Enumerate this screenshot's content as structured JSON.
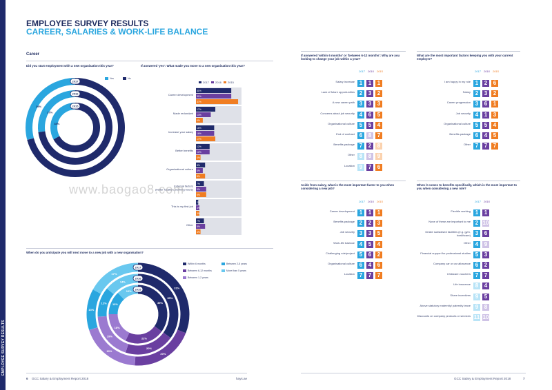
{
  "spine_label": "EMPLOYEE SURVEY RESULTS",
  "title_line1": "EMPLOYEE SURVEY RESULTS",
  "title_line2": "CAREER, SALARIES & WORK-LIFE BALANCE",
  "section": "Career",
  "watermark": "www.baogao8.com",
  "footer_left_page": "6",
  "footer_left_report": "GCC Salary & Employment Report 2018",
  "footer_left_site": "hays.ae",
  "footer_right_report": "GCC Salary & Employment Report 2018",
  "footer_right_page": "7",
  "colors": {
    "y2017": "#1f2a6b",
    "y2016": "#6a3fa0",
    "y2015": "#f07d22",
    "light2015": "#fbd2ae",
    "light2016": "#cfc3e6",
    "light2017": "#c9ccdc",
    "cyan": "#2aa6df",
    "navy": "#1f2a6b",
    "purple": "#6a3fa0",
    "lav": "#9b7ad0",
    "lightblue": "#69c8ef"
  },
  "chart_data": [
    {
      "type": "donut",
      "title": "Did you start employment with a new organisation this year?",
      "legend": [
        "Yes",
        "No"
      ],
      "rings": [
        {
          "year": "2017",
          "yes": 29,
          "no": 71
        },
        {
          "year": "2016",
          "yes": 27,
          "no": 73
        },
        {
          "year": "2015",
          "yes": 33,
          "no": 67
        }
      ]
    },
    {
      "type": "bar",
      "title": "If answered 'yes': What made you move to a new organisation this year?",
      "legend": [
        "2017",
        "2016",
        "2015"
      ],
      "categories": [
        "Career development",
        "Made redundant",
        "Increase your salary",
        "Better benefits",
        "Organisational culture",
        "External factors (better location, working hours)",
        "This is my first job",
        "Other"
      ],
      "series": [
        {
          "name": "2017",
          "values": [
            31,
            17,
            16,
            12,
            8,
            7,
            2,
            7
          ]
        },
        {
          "name": "2016",
          "values": [
            31,
            13,
            16,
            12,
            6,
            9,
            3,
            8
          ]
        },
        {
          "name": "2015",
          "values": [
            37,
            6,
            17,
            4,
            8,
            9,
            3,
            4
          ]
        }
      ],
      "xlim": [
        0,
        40
      ]
    },
    {
      "type": "donut",
      "title": "When do you anticipate you will next move to a new job with a new organisation?",
      "legend": [
        "Within 6 months",
        "Between 6-12 months",
        "Between 1-2 years",
        "Between 2-5 years",
        "More than 5 years"
      ],
      "rings": [
        {
          "year": "2017",
          "within6": 31,
          "b6to12": 20,
          "b1to2": 19,
          "b2to5": 13,
          "more5": 17
        },
        {
          "year": "2016",
          "within6": 35,
          "b6to12": 20,
          "b1to2": 19,
          "b2to5": 12,
          "more5": 14
        },
        {
          "year": "2015",
          "within6": 35,
          "b6to12": 22,
          "b1to2": 18,
          "b2to5": 13,
          "more5": 12
        }
      ]
    },
    {
      "type": "table",
      "title": "If answered 'within 6 months' or 'between 6-12 months': Why are you looking to change your job within a year?",
      "columns": [
        "2017",
        "2016",
        "2015"
      ],
      "rows": [
        [
          "Salary increase",
          1,
          1,
          1
        ],
        [
          "Lack of future opportunities",
          2,
          3,
          2
        ],
        [
          "A new career path",
          3,
          3,
          3
        ],
        [
          "Concerns about job security",
          4,
          6,
          5
        ],
        [
          "Organisational culture",
          5,
          5,
          4
        ],
        [
          "End of contract",
          6,
          8,
          7
        ],
        [
          "Benefits package",
          7,
          2,
          8
        ],
        [
          "Other",
          8,
          8,
          9
        ],
        [
          "Location",
          9,
          7,
          6
        ]
      ]
    },
    {
      "type": "table",
      "title": "What are the most important factors keeping you with your current employer?",
      "columns": [
        "2017",
        "2016",
        "2015"
      ],
      "rows": [
        [
          "I am happy in my role",
          1,
          2,
          6
        ],
        [
          "Salary",
          2,
          3,
          2
        ],
        [
          "Career progression",
          3,
          6,
          1
        ],
        [
          "Job security",
          4,
          1,
          3
        ],
        [
          "Organisational culture",
          5,
          5,
          4
        ],
        [
          "Benefits package",
          6,
          4,
          5
        ],
        [
          "Other",
          7,
          7,
          7
        ]
      ]
    },
    {
      "type": "table",
      "title": "Aside from salary, what is the most important factor to you when considering a new job?",
      "columns": [
        "2017",
        "2016",
        "2015"
      ],
      "rows": [
        [
          "Career development",
          1,
          1,
          1
        ],
        [
          "Benefits package",
          2,
          2,
          3
        ],
        [
          "Job security",
          3,
          3,
          5
        ],
        [
          "Work-life balance",
          4,
          5,
          4
        ],
        [
          "Challenging role/project",
          5,
          6,
          2
        ],
        [
          "Organisational culture",
          6,
          4,
          6
        ],
        [
          "Location",
          7,
          7,
          7
        ]
      ]
    },
    {
      "type": "table",
      "title": "When it comes to benefits specifically, which is the most important to you when considering a new role?",
      "columns": [
        "2017",
        "2016"
      ],
      "rows": [
        [
          "Flexible working",
          1,
          1
        ],
        [
          "None of these are important to me",
          2,
          10
        ],
        [
          "Onsite subsidised facilities (e.g. gym, healthcare)",
          3,
          6
        ],
        [
          "Other",
          4,
          9
        ],
        [
          "Financial support for professional studies",
          5,
          3
        ],
        [
          "Company car or car allowance",
          6,
          2
        ],
        [
          "Childcare vouchers",
          7,
          7
        ],
        [
          "Life insurance",
          8,
          4
        ],
        [
          "Share incentives",
          9,
          5
        ],
        [
          "Above statutory maternity/ paternity leave",
          9,
          8
        ],
        [
          "Discounts on company products or services",
          11,
          10
        ]
      ]
    }
  ]
}
